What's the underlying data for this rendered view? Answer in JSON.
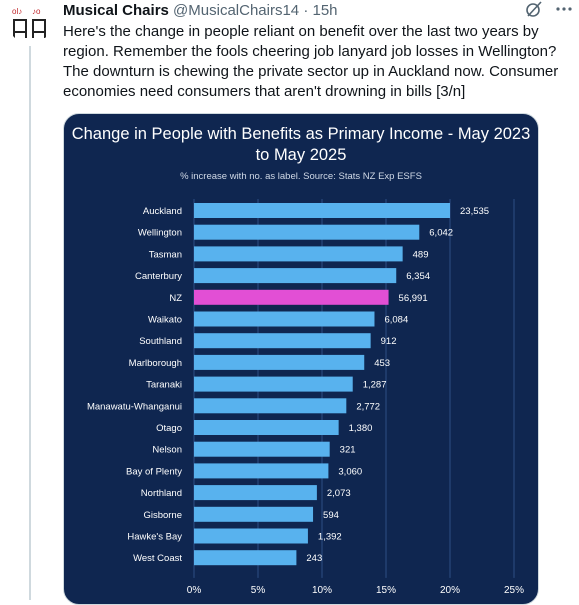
{
  "tweet": {
    "display_name": "Musical Chairs",
    "handle": "@MusicalChairs14",
    "separator": "·",
    "time": "15h",
    "text": "Here's the change in people reliant on benefit over the last two years by region. Remember the fools cheering job lanyard job losses in Wellington? The downturn is chewing the private sector up in Auckland now. Consumer economies need consumers that aren't drowning in bills [3/n]",
    "icons": [
      "grok-icon",
      "more-icon"
    ]
  },
  "colors": {
    "card_bg": "#0f2650",
    "bar": "#58b2ee",
    "highlight_bar": "#e24fd5",
    "grid": "#2c4f85"
  },
  "chart_data": {
    "type": "bar",
    "orientation": "horizontal",
    "title": "Change in People with Benefits as Primary Income - May 2023 to May 2025",
    "subtitle": "% increase with no. as label. Source: Stats NZ Exp ESFS",
    "categories": [
      "Auckland",
      "Wellington",
      "Tasman",
      "Canterbury",
      "NZ",
      "Waikato",
      "Southland",
      "Marlborough",
      "Taranaki",
      "Manawatu-Whanganui",
      "Otago",
      "Nelson",
      "Bay of Plenty",
      "Northland",
      "Gisborne",
      "Hawke's Bay",
      "West Coast"
    ],
    "values": [
      20.0,
      17.6,
      16.3,
      15.8,
      15.2,
      14.1,
      13.8,
      13.3,
      12.4,
      11.9,
      11.3,
      10.6,
      10.5,
      9.6,
      9.3,
      8.9,
      8.0
    ],
    "labels": [
      "23,535",
      "6,042",
      "489",
      "6,354",
      "56,991",
      "6,084",
      "912",
      "453",
      "1,287",
      "2,772",
      "1,380",
      "321",
      "3,060",
      "2,073",
      "594",
      "1,392",
      "243"
    ],
    "highlight": "NZ",
    "xlim": [
      0,
      25
    ],
    "xticks": [
      "0%",
      "5%",
      "10%",
      "15%",
      "20%",
      "25%"
    ],
    "grid": true
  }
}
